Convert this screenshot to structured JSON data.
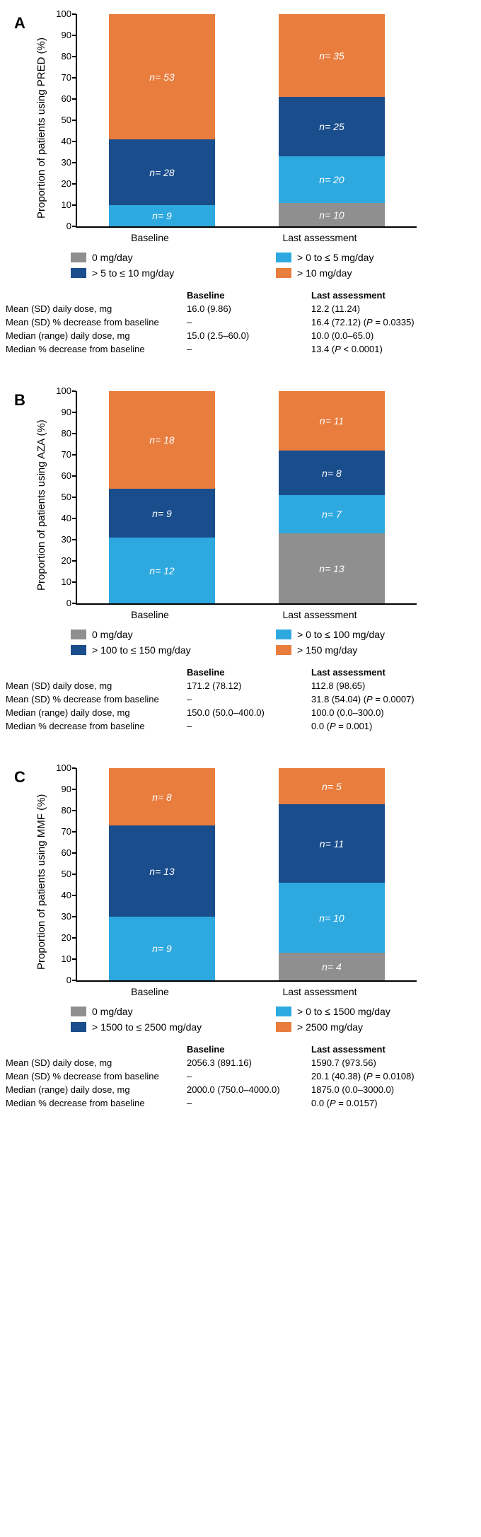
{
  "colors": {
    "gray": "#8f8f8f",
    "lightblue": "#2ea9e0",
    "darkblue": "#1a4d8c",
    "orange": "#e87d3e",
    "text_white": "#ffffff",
    "axis": "#000000",
    "background": "#ffffff"
  },
  "yaxis": {
    "min": 0,
    "max": 100,
    "step": 10,
    "ticks": [
      100,
      90,
      80,
      70,
      60,
      50,
      40,
      30,
      20,
      10,
      0
    ]
  },
  "panels": [
    {
      "id": "A",
      "ylabel": "Proportion of patients using PRED (%)",
      "bars": [
        {
          "xlabel": "Baseline",
          "segments": [
            {
              "color": "gray",
              "pct": 0,
              "label": ""
            },
            {
              "color": "lightblue",
              "pct": 10,
              "label": "n = 9"
            },
            {
              "color": "darkblue",
              "pct": 31,
              "label": "n = 28"
            },
            {
              "color": "orange",
              "pct": 59,
              "label": "n = 53"
            }
          ]
        },
        {
          "xlabel": "Last assessment",
          "segments": [
            {
              "color": "gray",
              "pct": 11,
              "label": "n = 10"
            },
            {
              "color": "lightblue",
              "pct": 22,
              "label": "n = 20"
            },
            {
              "color": "darkblue",
              "pct": 28,
              "label": "n = 25"
            },
            {
              "color": "orange",
              "pct": 39,
              "label": "n = 35"
            }
          ]
        }
      ],
      "legend": [
        {
          "color": "gray",
          "label": "0 mg/day"
        },
        {
          "color": "lightblue",
          "label": "> 0 to ≤ 5 mg/day"
        },
        {
          "color": "darkblue",
          "label": "> 5 to ≤ 10 mg/day"
        },
        {
          "color": "orange",
          "label": "> 10 mg/day"
        }
      ],
      "stats": {
        "cols": [
          "",
          "Baseline",
          "Last assessment"
        ],
        "rows": [
          [
            "Mean (SD) daily dose, mg",
            "16.0 (9.86)",
            "12.2 (11.24)"
          ],
          [
            "Mean (SD) % decrease from baseline",
            "–",
            "16.4 (72.12) (P = 0.0335)"
          ],
          [
            "Median (range) daily dose, mg",
            "15.0 (2.5–60.0)",
            "10.0 (0.0–65.0)"
          ],
          [
            "Median % decrease from baseline",
            "–",
            "13.4 (P < 0.0001)"
          ]
        ]
      }
    },
    {
      "id": "B",
      "ylabel": "Proportion of patients using AZA (%)",
      "bars": [
        {
          "xlabel": "Baseline",
          "segments": [
            {
              "color": "gray",
              "pct": 0,
              "label": ""
            },
            {
              "color": "lightblue",
              "pct": 31,
              "label": "n = 12"
            },
            {
              "color": "darkblue",
              "pct": 23,
              "label": "n = 9"
            },
            {
              "color": "orange",
              "pct": 46,
              "label": "n = 18"
            }
          ]
        },
        {
          "xlabel": "Last assessment",
          "segments": [
            {
              "color": "gray",
              "pct": 33,
              "label": "n = 13"
            },
            {
              "color": "lightblue",
              "pct": 18,
              "label": "n = 7"
            },
            {
              "color": "darkblue",
              "pct": 21,
              "label": "n = 8"
            },
            {
              "color": "orange",
              "pct": 28,
              "label": "n = 11"
            }
          ]
        }
      ],
      "legend": [
        {
          "color": "gray",
          "label": "0 mg/day"
        },
        {
          "color": "lightblue",
          "label": "> 0 to ≤ 100 mg/day"
        },
        {
          "color": "darkblue",
          "label": "> 100 to ≤ 150 mg/day"
        },
        {
          "color": "orange",
          "label": "> 150 mg/day"
        }
      ],
      "stats": {
        "cols": [
          "",
          "Baseline",
          "Last assessment"
        ],
        "rows": [
          [
            "Mean (SD) daily dose, mg",
            "171.2 (78.12)",
            "112.8 (98.65)"
          ],
          [
            "Mean (SD) % decrease from baseline",
            "–",
            "31.8 (54.04) (P = 0.0007)"
          ],
          [
            "Median (range) daily dose, mg",
            "150.0 (50.0–400.0)",
            "100.0 (0.0–300.0)"
          ],
          [
            "Median % decrease from baseline",
            "–",
            "0.0 (P = 0.001)"
          ]
        ]
      }
    },
    {
      "id": "C",
      "ylabel": "Proportion of patients using MMF (%)",
      "bars": [
        {
          "xlabel": "Baseline",
          "segments": [
            {
              "color": "gray",
              "pct": 0,
              "label": ""
            },
            {
              "color": "lightblue",
              "pct": 30,
              "label": "n = 9"
            },
            {
              "color": "darkblue",
              "pct": 43,
              "label": "n = 13"
            },
            {
              "color": "orange",
              "pct": 27,
              "label": "n = 8"
            }
          ]
        },
        {
          "xlabel": "Last assessment",
          "segments": [
            {
              "color": "gray",
              "pct": 13,
              "label": "n = 4"
            },
            {
              "color": "lightblue",
              "pct": 33,
              "label": "n = 10"
            },
            {
              "color": "darkblue",
              "pct": 37,
              "label": "n = 11"
            },
            {
              "color": "orange",
              "pct": 17,
              "label": "n = 5"
            }
          ]
        }
      ],
      "legend": [
        {
          "color": "gray",
          "label": "0 mg/day"
        },
        {
          "color": "lightblue",
          "label": "> 0 to ≤ 1500 mg/day"
        },
        {
          "color": "darkblue",
          "label": "> 1500 to ≤ 2500 mg/day"
        },
        {
          "color": "orange",
          "label": "> 2500 mg/day"
        }
      ],
      "stats": {
        "cols": [
          "",
          "Baseline",
          "Last assessment"
        ],
        "rows": [
          [
            "Mean (SD) daily dose, mg",
            "2056.3 (891.16)",
            "1590.7 (973.56)"
          ],
          [
            "Mean (SD) % decrease from baseline",
            "–",
            "20.1 (40.38) (P = 0.0108)"
          ],
          [
            "Median (range) daily dose, mg",
            "2000.0 (750.0–4000.0)",
            "1875.0 (0.0–3000.0)"
          ],
          [
            "Median % decrease from baseline",
            "–",
            "0.0 (P = 0.0157)"
          ]
        ]
      }
    }
  ]
}
